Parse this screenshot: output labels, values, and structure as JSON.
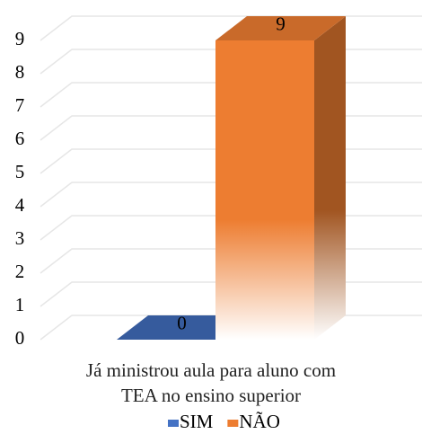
{
  "chart_data": {
    "type": "bar3d",
    "categories": [
      "Já ministrou aula para aluno com TEA no ensino superior"
    ],
    "series": [
      {
        "name": "SIM",
        "color": "#4472c4",
        "values": [
          0
        ]
      },
      {
        "name": "NÃO",
        "color": "#ed7d31",
        "values": [
          9
        ]
      }
    ],
    "ylim": [
      0,
      9
    ],
    "yticks": [
      0,
      1,
      2,
      3,
      4,
      5,
      6,
      7,
      8,
      9
    ],
    "grid": true,
    "legend": "bottom"
  }
}
